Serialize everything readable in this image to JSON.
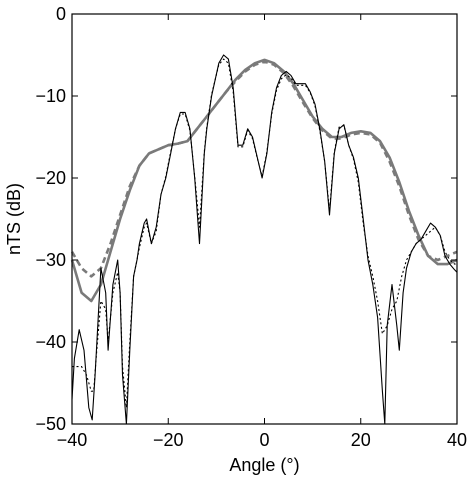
{
  "chart_data": {
    "type": "line",
    "xlabel": "Angle (°)",
    "ylabel": "nTS (dB)",
    "xlim": [
      -40,
      40
    ],
    "ylim": [
      -50,
      0
    ],
    "xticks": [
      -40,
      -20,
      0,
      20,
      40
    ],
    "yticks": [
      -50,
      -40,
      -30,
      -20,
      -10,
      0
    ],
    "xtick_labels": [
      "−40",
      "−20",
      "0",
      "20",
      "40"
    ],
    "ytick_labels": [
      "−50",
      "−40",
      "−30",
      "−20",
      "−10",
      "0"
    ],
    "grid": false,
    "series": [
      {
        "style": "thick-gray-solid",
        "color": "#7a7a7a",
        "x": [
          -40,
          -38,
          -36,
          -34,
          -32,
          -30,
          -28,
          -26,
          -24,
          -22,
          -20,
          -18,
          -16,
          -14,
          -12,
          -10,
          -8,
          -6,
          -4,
          -2,
          0,
          2,
          4,
          6,
          8,
          10,
          12,
          14,
          16,
          18,
          20,
          22,
          24,
          26,
          28,
          30,
          32,
          34,
          36,
          38,
          40
        ],
        "values": [
          -30,
          -34,
          -35,
          -33,
          -29,
          -25,
          -21.5,
          -18.5,
          -17,
          -16.5,
          -16,
          -15.8,
          -15.5,
          -14,
          -12.5,
          -11,
          -9.5,
          -8,
          -6.8,
          -6,
          -5.6,
          -6,
          -7,
          -8.5,
          -10.5,
          -12.5,
          -14,
          -15,
          -15,
          -14.5,
          -14.3,
          -14.5,
          -15.5,
          -17.5,
          -20.5,
          -24,
          -27,
          -29.5,
          -30.5,
          -30.5,
          -30
        ]
      },
      {
        "style": "thick-gray-dashed",
        "color": "#7a7a7a",
        "x": [
          -40,
          -38,
          -36,
          -34,
          -32,
          -30,
          -28,
          -26,
          -24,
          -22,
          -20,
          -18,
          -16,
          -14,
          -12,
          -10,
          -8,
          -6,
          -4,
          -2,
          0,
          2,
          4,
          6,
          8,
          10,
          12,
          14,
          16,
          18,
          20,
          22,
          24,
          26,
          28,
          30,
          32,
          34,
          36,
          38,
          40
        ],
        "values": [
          -29,
          -31,
          -32,
          -31,
          -28,
          -24.5,
          -21,
          -18.5,
          -17,
          -16.5,
          -16,
          -15.8,
          -15.5,
          -14,
          -12.5,
          -11,
          -9.5,
          -8.2,
          -7,
          -6.2,
          -5.8,
          -6.2,
          -7.2,
          -8.8,
          -10.8,
          -12.7,
          -14.2,
          -15.2,
          -15.2,
          -14.7,
          -14.5,
          -14.7,
          -15.7,
          -18,
          -21,
          -24.5,
          -27.5,
          -29.5,
          -30,
          -29.5,
          -29
        ]
      },
      {
        "style": "thin-black-solid",
        "color": "#000000",
        "x": [
          -40,
          -39.5,
          -38.5,
          -37.5,
          -36.5,
          -35.8,
          -35.2,
          -34,
          -33,
          -32.5,
          -31.5,
          -30.5,
          -30,
          -29.5,
          -28.7,
          -28,
          -27.2,
          -26.5,
          -26,
          -25,
          -24.5,
          -23.5,
          -22.5,
          -21.5,
          -20.5,
          -19.5,
          -18.5,
          -17.5,
          -16.5,
          -15.5,
          -14.5,
          -13.5,
          -12.5,
          -12,
          -11,
          -9.5,
          -8.5,
          -7.5,
          -6.5,
          -5.5,
          -4.5,
          -3.5,
          -2.5,
          -1.5,
          -0.5,
          0.5,
          1.5,
          2.5,
          3.5,
          4.5,
          5.5,
          6.5,
          7.5,
          8.5,
          9.5,
          10.5,
          11.5,
          12.5,
          13.5,
          14.5,
          15.5,
          16.5,
          17.5,
          18.5,
          19.5,
          20.5,
          21.5,
          22.5,
          23.5,
          24.5,
          25,
          25.5,
          26.5,
          27.5,
          28,
          28.8,
          29.5,
          30.5,
          31.5,
          32.5,
          33.5,
          34.5,
          35.5,
          36.5,
          37.5,
          38.5,
          39.5,
          40
        ],
        "values": [
          -47,
          -42,
          -38.5,
          -41,
          -48,
          -49.5,
          -44,
          -31,
          -34,
          -41,
          -33,
          -30,
          -34,
          -44,
          -50,
          -41,
          -32,
          -30,
          -28,
          -25.5,
          -25,
          -28,
          -26,
          -22,
          -20,
          -17,
          -14,
          -12,
          -12,
          -14,
          -20,
          -28,
          -17,
          -14,
          -10,
          -6,
          -5,
          -5.5,
          -9,
          -16,
          -16,
          -14,
          -15,
          -17.5,
          -20,
          -17,
          -12,
          -9,
          -7.5,
          -7,
          -7.5,
          -8.5,
          -8.5,
          -8.5,
          -9.5,
          -11,
          -14,
          -18,
          -24.5,
          -17,
          -14,
          -13.5,
          -16,
          -17.5,
          -20,
          -25,
          -30,
          -33,
          -37,
          -46,
          -50,
          -38,
          -33,
          -38,
          -41,
          -34,
          -31,
          -29,
          -28,
          -27.5,
          -26.5,
          -25.5,
          -26,
          -27,
          -29.5,
          -30.5,
          -31.2,
          -31.5
        ]
      },
      {
        "style": "thin-black-dotted",
        "color": "#000000",
        "x": [
          -40,
          -39,
          -38,
          -37,
          -36,
          -35.5,
          -35,
          -34,
          -33,
          -32.5,
          -31.5,
          -30.5,
          -30,
          -29.5,
          -28.7,
          -28,
          -27.2,
          -26.5,
          -26,
          -25,
          -24.5,
          -23.5,
          -22.5,
          -21.5,
          -20.5,
          -19.5,
          -18.5,
          -17.5,
          -16.5,
          -15.5,
          -14.5,
          -13.5,
          -12.5,
          -12,
          -11,
          -9.5,
          -8.5,
          -7.5,
          -6.5,
          -5.5,
          -4.5,
          -3.5,
          -2.5,
          -1.5,
          -0.5,
          0.5,
          1.5,
          2.5,
          3.5,
          4.5,
          5.5,
          6.5,
          7.5,
          8.5,
          9.5,
          10.5,
          11.5,
          12.5,
          13.5,
          14.5,
          15.5,
          16.5,
          17.5,
          18.5,
          19.5,
          20.5,
          21.5,
          22.5,
          23.5,
          24.5,
          25.5,
          26.5,
          27.5,
          28.5,
          29.5,
          30.5,
          31.5,
          32.5,
          33.5,
          34.5,
          35.5,
          36.5,
          37.5,
          38.5,
          39.5,
          40
        ],
        "values": [
          -43,
          -43,
          -43,
          -44,
          -46,
          -46,
          -42,
          -35,
          -36,
          -40,
          -34,
          -31.5,
          -34,
          -43,
          -48,
          -40,
          -32,
          -30,
          -28.5,
          -26,
          -25.5,
          -28,
          -26.5,
          -22,
          -19.8,
          -16.8,
          -14,
          -12.2,
          -12.2,
          -14.2,
          -19.8,
          -26,
          -16.8,
          -13.8,
          -9.8,
          -6.2,
          -5.5,
          -6,
          -9.5,
          -16.2,
          -16.2,
          -14.2,
          -15.2,
          -17.6,
          -19.8,
          -16.8,
          -12.2,
          -9.3,
          -7.9,
          -7.4,
          -7.8,
          -8.7,
          -8.7,
          -8.7,
          -9.6,
          -11.2,
          -14.2,
          -18,
          -24,
          -16.8,
          -13.8,
          -13.6,
          -16,
          -17.7,
          -20.5,
          -25.5,
          -29.5,
          -32,
          -35,
          -39,
          -38,
          -36,
          -35,
          -32,
          -30,
          -29,
          -28,
          -27.5,
          -27,
          -26.5,
          -26,
          -27,
          -29,
          -30,
          -30.5,
          -30.5
        ]
      }
    ]
  }
}
